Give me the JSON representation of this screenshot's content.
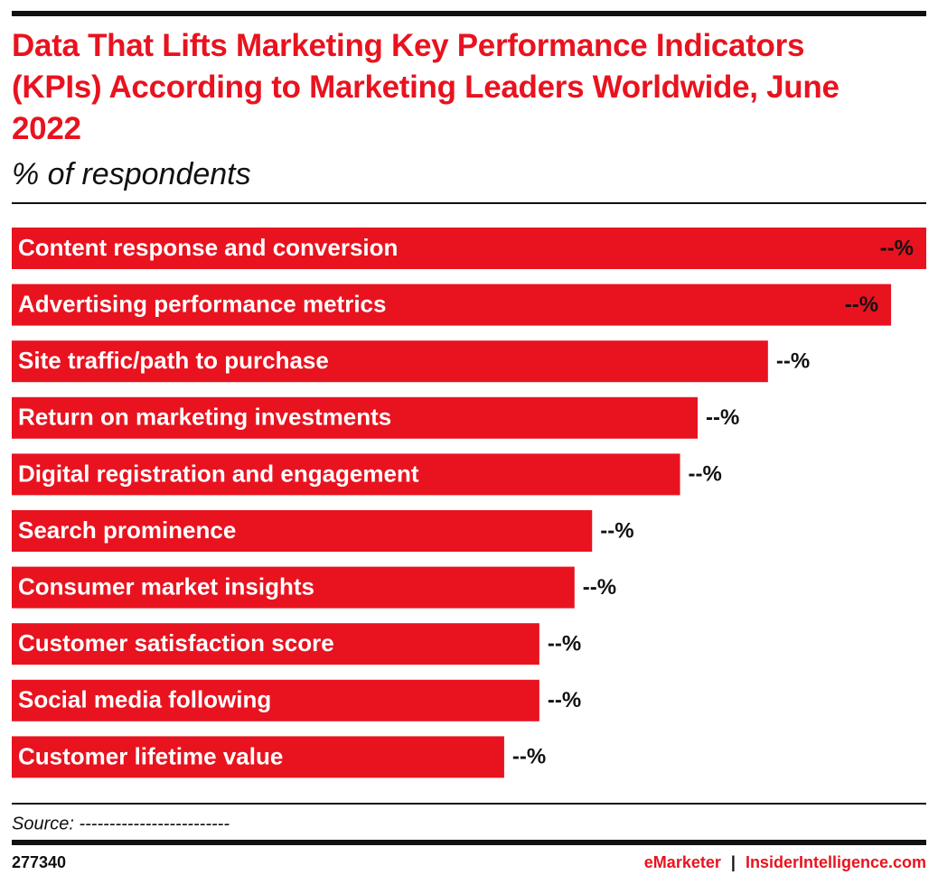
{
  "chart_data": {
    "type": "bar",
    "orientation": "horizontal",
    "title": "Data That Lifts Marketing Key Performance Indicators (KPIs) According to Marketing Leaders Worldwide, June 2022",
    "subtitle": "% of respondents",
    "categories": [
      "Content response and conversion",
      "Advertising performance metrics",
      "Site traffic/path to purchase",
      "Return on marketing investments",
      "Digital registration and engagement",
      "Search prominence",
      "Consumer market insights",
      "Customer satisfaction score",
      "Social media following",
      "Customer lifetime value"
    ],
    "values": [
      52,
      50,
      43,
      39,
      38,
      33,
      32,
      30,
      30,
      28
    ],
    "value_labels": [
      "--%",
      "--%",
      "--%",
      "--%",
      "--%",
      "--%",
      "--%",
      "--%",
      "--%",
      "--%"
    ],
    "color": "#e8131f",
    "source": "Source: -------------------------",
    "chart_id": "277340",
    "brand": "eMarketer",
    "separator": "|",
    "site": "InsiderIntelligence.com"
  }
}
